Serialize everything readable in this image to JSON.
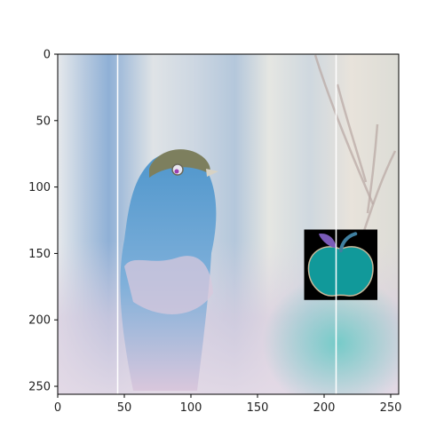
{
  "chart_data": {
    "type": "image",
    "title": "",
    "xlabel": "",
    "ylabel": "",
    "xlim": [
      0,
      256
    ],
    "ylim": [
      256,
      0
    ],
    "x_ticks": [
      0,
      50,
      100,
      150,
      200,
      250
    ],
    "y_ticks": [
      0,
      50,
      100,
      150,
      200,
      250
    ],
    "vertical_lines_x": [
      45,
      209
    ],
    "vertical_line_color": "#ffffff",
    "image_content": {
      "subject": "small bird with blue head and chest, inverted-color photo",
      "inset_icon": "apple-icon",
      "inset_icon_extent": {
        "x": [
          185,
          240
        ],
        "y": [
          132,
          185
        ]
      },
      "inset_icon_colors": {
        "background": "#000000",
        "fruit": "#11999a",
        "outline": "#c8b89a",
        "stem": "#3f7fa0",
        "leaf": "#7a5bb8"
      }
    }
  }
}
